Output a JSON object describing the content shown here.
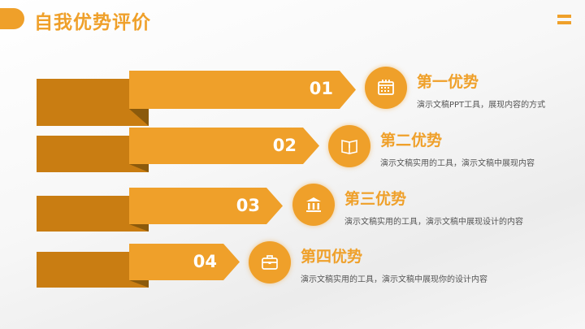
{
  "header": {
    "title": "自我优势评价",
    "menu_icon": "menu-icon"
  },
  "colors": {
    "accent": "#EFA02A",
    "dark": "#C97D12",
    "shadow": "#8B5A0C"
  },
  "items": [
    {
      "number": "01",
      "title": "第一优势",
      "desc": "演示文稿PPT工具，展现内容的方式",
      "icon": "calendar-icon"
    },
    {
      "number": "02",
      "title": "第二优势",
      "desc": "演示文稿实用的工具，演示文稿中展现内容",
      "icon": "book-icon"
    },
    {
      "number": "03",
      "title": "第三优势",
      "desc": "演示文稿实用的工具，演示文稿中展现设计的内容",
      "icon": "bank-icon"
    },
    {
      "number": "04",
      "title": "第四优势",
      "desc": "演示文稿实用的工具，演示文稿中展现你的设计内容",
      "icon": "briefcase-icon"
    }
  ]
}
